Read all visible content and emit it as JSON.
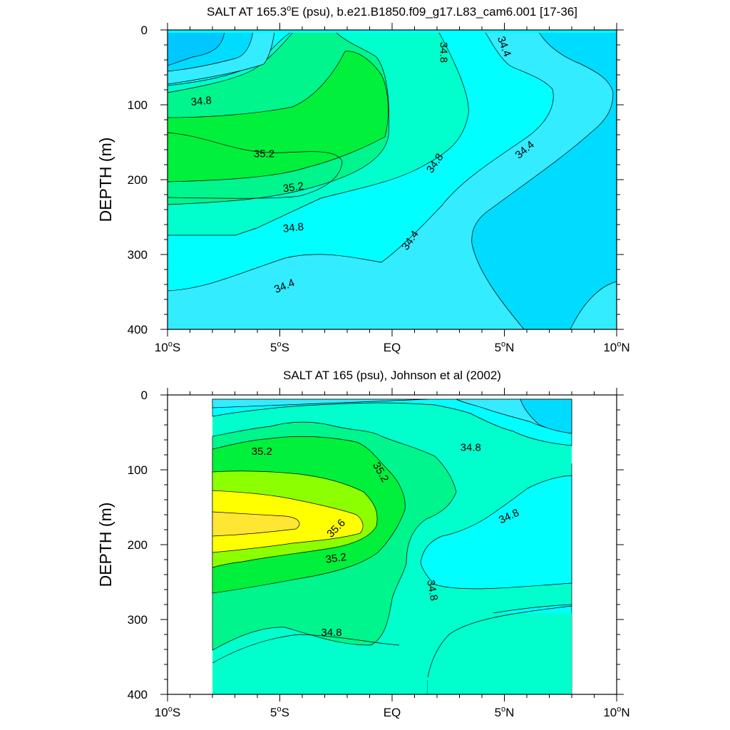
{
  "chart_data": [
    {
      "type": "contour",
      "title": "SALT AT 165.3°E (psu), b.e21.B1850.f09_g17.L83_cam6.001 [17-36]",
      "title_parts": [
        "SALT AT 165.3",
        "o",
        "E (psu), b.e21.B1850.f09_g17.L83_cam6.001 [17-36]"
      ],
      "ylabel": "DEPTH (m)",
      "xlim": [
        -10,
        10
      ],
      "ylim": [
        0,
        400
      ],
      "y_inverted": true,
      "x_ticks": [
        {
          "value": -10,
          "num": "10",
          "hemi": "S"
        },
        {
          "value": -5,
          "num": "5",
          "hemi": "S"
        },
        {
          "value": 0,
          "num": "EQ",
          "hemi": ""
        },
        {
          "value": 5,
          "num": "5",
          "hemi": "N"
        },
        {
          "value": 10,
          "num": "10",
          "hemi": "N"
        }
      ],
      "y_ticks": [
        "0",
        "100",
        "200",
        "300",
        "400"
      ],
      "data_extent_x": [
        -10,
        10
      ],
      "fill_levels": [
        {
          "level": 34.0,
          "color": "#00c8ff"
        },
        {
          "level": 34.2,
          "color": "#00dcff"
        },
        {
          "level": 34.4,
          "color": "#33ecff"
        },
        {
          "level": 34.6,
          "color": "#00ffff"
        },
        {
          "level": 34.8,
          "color": "#00ffcc"
        },
        {
          "level": 35.0,
          "color": "#00f58c"
        },
        {
          "level": 35.2,
          "color": "#00f03c"
        }
      ],
      "contour_labels": [
        {
          "text": "34.8",
          "lon": -8.5,
          "depth": 95,
          "angle": -5
        },
        {
          "text": "35.2",
          "lon": -5.7,
          "depth": 165,
          "angle": 0
        },
        {
          "text": "35.2",
          "lon": -4.4,
          "depth": 210,
          "angle": -8
        },
        {
          "text": "34.8",
          "lon": -4.4,
          "depth": 264,
          "angle": -6
        },
        {
          "text": "34.4",
          "lon": -4.8,
          "depth": 342,
          "angle": -22
        },
        {
          "text": "34.8",
          "lon": 1.9,
          "depth": 178,
          "angle": -55
        },
        {
          "text": "34.4",
          "lon": 0.8,
          "depth": 281,
          "angle": -55
        },
        {
          "text": "34.8",
          "lon": 2.3,
          "depth": 30,
          "angle": 90
        },
        {
          "text": "34.4",
          "lon": 5.0,
          "depth": 22,
          "angle": 70
        },
        {
          "text": "34.4",
          "lon": 5.9,
          "depth": 160,
          "angle": -40
        }
      ]
    },
    {
      "type": "contour",
      "title": "SALT AT 165 (psu), Johnson et al (2002)",
      "ylabel": "DEPTH (m)",
      "xlim": [
        -10,
        10
      ],
      "ylim": [
        0,
        400
      ],
      "y_inverted": true,
      "x_ticks": [
        {
          "value": -10,
          "num": "10",
          "hemi": "S"
        },
        {
          "value": -5,
          "num": "5",
          "hemi": "S"
        },
        {
          "value": 0,
          "num": "EQ",
          "hemi": ""
        },
        {
          "value": 5,
          "num": "5",
          "hemi": "N"
        },
        {
          "value": 10,
          "num": "10",
          "hemi": "N"
        }
      ],
      "y_ticks": [
        "0",
        "100",
        "200",
        "300",
        "400"
      ],
      "data_extent_x": [
        -8,
        8
      ],
      "fill_levels": [
        {
          "level": 34.2,
          "color": "#00dcff"
        },
        {
          "level": 34.4,
          "color": "#33ecff"
        },
        {
          "level": 34.6,
          "color": "#00ffff"
        },
        {
          "level": 34.8,
          "color": "#00ffcc"
        },
        {
          "level": 35.0,
          "color": "#00f58c"
        },
        {
          "level": 35.2,
          "color": "#00f03c"
        },
        {
          "level": 35.4,
          "color": "#8cff00"
        },
        {
          "level": 35.6,
          "color": "#ffff00"
        },
        {
          "level": 35.8,
          "color": "#ffe632"
        }
      ],
      "contour_labels": [
        {
          "text": "35.2",
          "lon": -5.8,
          "depth": 75,
          "angle": 0
        },
        {
          "text": "35.2",
          "lon": -0.5,
          "depth": 103,
          "angle": 60
        },
        {
          "text": "35.6",
          "lon": -2.5,
          "depth": 178,
          "angle": -45
        },
        {
          "text": "35.2",
          "lon": -2.5,
          "depth": 218,
          "angle": -8
        },
        {
          "text": "34.8",
          "lon": 1.8,
          "depth": 261,
          "angle": 80
        },
        {
          "text": "34.8",
          "lon": -2.7,
          "depth": 317,
          "angle": 0
        },
        {
          "text": "34.8",
          "lon": 3.5,
          "depth": 70,
          "angle": 0
        },
        {
          "text": "34.8",
          "lon": 5.2,
          "depth": 162,
          "angle": -25
        }
      ]
    }
  ]
}
